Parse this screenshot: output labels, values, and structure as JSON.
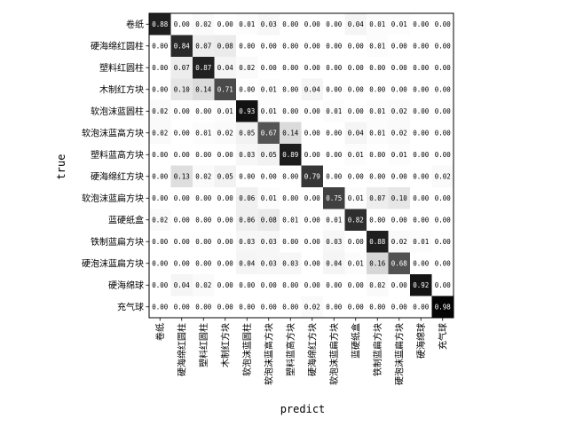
{
  "chart_data": {
    "type": "heatmap",
    "xlabel": "predict",
    "ylabel": "true",
    "categories": [
      "卷纸",
      "硬海绵红圆柱",
      "塑料红圆柱",
      "木制红方块",
      "软泡沫蓝圆柱",
      "软泡沫蓝高方块",
      "塑料蓝高方块",
      "硬海绵红方块",
      "软泡沫蓝扁方块",
      "蓝硬纸盒",
      "铁制蓝扁方块",
      "硬泡沫蓝扁方块",
      "硬海绵球",
      "充气球"
    ],
    "colormap": "Greys",
    "vmin": 0,
    "vmax": 1,
    "values": [
      [
        0.88,
        0.0,
        0.02,
        0.0,
        0.01,
        0.03,
        0.0,
        0.0,
        0.0,
        0.04,
        0.01,
        0.01,
        0.0,
        0.0
      ],
      [
        0.0,
        0.84,
        0.07,
        0.08,
        0.0,
        0.0,
        0.0,
        0.0,
        0.0,
        0.0,
        0.01,
        0.0,
        0.0,
        0.0
      ],
      [
        0.0,
        0.07,
        0.87,
        0.04,
        0.02,
        0.0,
        0.0,
        0.0,
        0.0,
        0.0,
        0.0,
        0.0,
        0.0,
        0.0
      ],
      [
        0.0,
        0.1,
        0.14,
        0.71,
        0.0,
        0.01,
        0.0,
        0.04,
        0.0,
        0.0,
        0.0,
        0.0,
        0.0,
        0.0
      ],
      [
        0.02,
        0.0,
        0.0,
        0.01,
        0.93,
        0.01,
        0.0,
        0.0,
        0.01,
        0.0,
        0.01,
        0.02,
        0.0,
        0.0
      ],
      [
        0.02,
        0.0,
        0.01,
        0.02,
        0.05,
        0.67,
        0.14,
        0.0,
        0.0,
        0.04,
        0.01,
        0.02,
        0.0,
        0.0
      ],
      [
        0.0,
        0.0,
        0.0,
        0.0,
        0.03,
        0.05,
        0.89,
        0.0,
        0.0,
        0.01,
        0.0,
        0.01,
        0.0,
        0.0
      ],
      [
        0.0,
        0.13,
        0.02,
        0.05,
        0.0,
        0.0,
        0.0,
        0.79,
        0.0,
        0.0,
        0.0,
        0.0,
        0.0,
        0.02
      ],
      [
        0.0,
        0.0,
        0.0,
        0.0,
        0.06,
        0.01,
        0.0,
        0.0,
        0.75,
        0.01,
        0.07,
        0.1,
        0.0,
        0.0
      ],
      [
        0.02,
        0.0,
        0.0,
        0.0,
        0.06,
        0.08,
        0.01,
        0.0,
        0.01,
        0.82,
        0.0,
        0.0,
        0.0,
        0.0
      ],
      [
        0.0,
        0.0,
        0.0,
        0.0,
        0.03,
        0.03,
        0.0,
        0.0,
        0.03,
        0.0,
        0.88,
        0.02,
        0.01,
        0.0
      ],
      [
        0.0,
        0.0,
        0.0,
        0.0,
        0.04,
        0.03,
        0.03,
        0.0,
        0.04,
        0.01,
        0.16,
        0.68,
        0.0,
        0.0
      ],
      [
        0.0,
        0.04,
        0.02,
        0.0,
        0.0,
        0.0,
        0.0,
        0.0,
        0.0,
        0.0,
        0.02,
        0.0,
        0.92,
        0.0
      ],
      [
        0.0,
        0.0,
        0.0,
        0.0,
        0.0,
        0.0,
        0.0,
        0.02,
        0.0,
        0.0,
        0.0,
        0.0,
        0.0,
        0.98
      ]
    ]
  }
}
